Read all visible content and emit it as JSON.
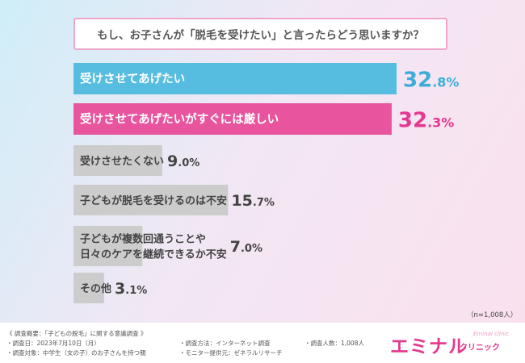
{
  "question": "もし、お子さんが「脱毛を受けたい」と言ったらどう思いますか？",
  "sample_note": "（n=1,008人）",
  "chart_data": {
    "type": "bar",
    "orientation": "horizontal",
    "xlim": [
      0,
      35
    ],
    "categories": [
      "受けさせてあげたい",
      "受けさせてあげたいがすぐには厳しい",
      "受けさせたくない",
      "子どもが脱毛を受けるのは不安",
      "子どもが複数回通うことや 日々のケアを継続できるか不安",
      "その他"
    ],
    "values": [
      32.8,
      32.3,
      9.0,
      15.7,
      7.0,
      3.1
    ],
    "value_labels": [
      "32.8%",
      "32.3%",
      "9.0%",
      "15.7%",
      "7.0%",
      "3.1%"
    ],
    "colors": [
      "#56bde0",
      "#e8559e",
      "#cccccc",
      "#cccccc",
      "#cccccc",
      "#cccccc"
    ],
    "label_colors": [
      "#3aaed8",
      "#e5388f",
      "#444444",
      "#444444",
      "#444444",
      "#444444"
    ],
    "highlight": [
      true,
      true,
      false,
      false,
      false,
      false
    ]
  },
  "survey": {
    "heading": "《 調査概要：「子どもの脱毛」に関する意識調査 》",
    "date": "・調査日：2023年7月10日（月）",
    "target": "・調査対象：中学生（女の子）のお子さんを持つ親",
    "method": "・調査方法：インターネット調査",
    "provider": "・モニター提供元：ゼネラルリサーチ",
    "count": "・調査人数：1,008人"
  },
  "logo": {
    "main": "エミナル",
    "sub": "クリニック",
    "en": "Eminal clinic"
  }
}
